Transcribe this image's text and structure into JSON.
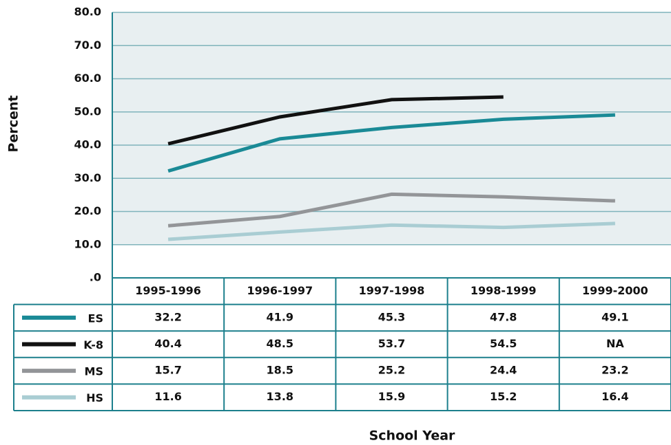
{
  "chart_data": {
    "type": "line",
    "x_label": "School Year",
    "y_label": "Percent",
    "categories": [
      "1995-1996",
      "1996-1997",
      "1997-1998",
      "1998-1999",
      "1999-2000"
    ],
    "series": [
      {
        "name": "ES",
        "color": "#1a8a96",
        "values": [
          32.2,
          41.9,
          45.3,
          47.8,
          49.1
        ]
      },
      {
        "name": "K-8",
        "color": "#111111",
        "values": [
          40.4,
          48.5,
          53.7,
          54.5,
          null
        ],
        "value_labels": [
          "40.4",
          "48.5",
          "53.7",
          "54.5",
          "NA"
        ]
      },
      {
        "name": "MS",
        "color": "#939598",
        "values": [
          15.7,
          18.5,
          25.2,
          24.4,
          23.2
        ]
      },
      {
        "name": "HS",
        "color": "#a9cdd3",
        "values": [
          11.6,
          13.8,
          15.9,
          15.2,
          16.4
        ]
      }
    ],
    "ylim": [
      0,
      80
    ],
    "yticks": [
      {
        "value": 0,
        "label": ".0"
      },
      {
        "value": 10,
        "label": "10.0"
      },
      {
        "value": 20,
        "label": "20.0"
      },
      {
        "value": 30,
        "label": "30.0"
      },
      {
        "value": 40,
        "label": "40.0"
      },
      {
        "value": 50,
        "label": "50.0"
      },
      {
        "value": 60,
        "label": "60.0"
      },
      {
        "value": 70,
        "label": "70.0"
      },
      {
        "value": 80,
        "label": "80.0"
      }
    ],
    "grid": true
  }
}
